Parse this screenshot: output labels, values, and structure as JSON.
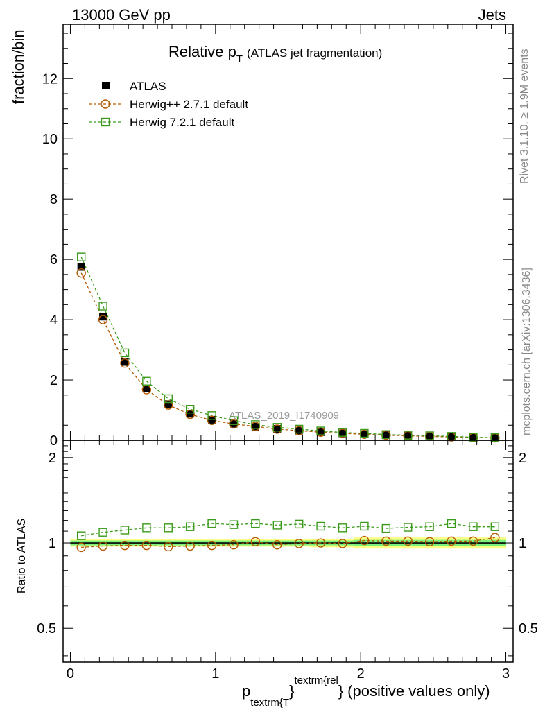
{
  "header": {
    "left": "13000 GeV pp",
    "right": "Jets"
  },
  "side": {
    "rivet": "Rivet 3.1.10, ≥ 1.9M events",
    "mcplots": "mcplots.cern.ch [arXiv:1306.3436]"
  },
  "colors": {
    "atlas": "#000000",
    "herwigpp": "#b35900",
    "herwig7": "#3a9a1a",
    "band_inner": "#7cf07c",
    "band_outer": "#ffff80"
  },
  "chart_data": [
    {
      "type": "scatter",
      "title_main": "Relative p",
      "title_sub": "T",
      "title_rest": "(ATLAS jet fragmentation)",
      "ylabel": "fraction/bin",
      "watermark": "ATLAS_2019_I1740909",
      "xlim": [
        -0.05,
        3.05
      ],
      "ylim": [
        0,
        13.8
      ],
      "yticks": [
        0,
        2,
        4,
        6,
        8,
        10,
        12
      ],
      "x": [
        0.075,
        0.225,
        0.375,
        0.525,
        0.675,
        0.825,
        0.975,
        1.125,
        1.275,
        1.425,
        1.575,
        1.725,
        1.875,
        2.025,
        2.175,
        2.325,
        2.475,
        2.625,
        2.775,
        2.925
      ],
      "series": [
        {
          "name": "ATLAS",
          "style": "data",
          "values": [
            5.75,
            4.1,
            2.6,
            1.72,
            1.2,
            0.88,
            0.68,
            0.55,
            0.45,
            0.38,
            0.32,
            0.27,
            0.23,
            0.2,
            0.17,
            0.15,
            0.13,
            0.11,
            0.09,
            0.08
          ]
        },
        {
          "name": "Herwig++ 2.7.1 default",
          "style": "circle",
          "values": [
            5.55,
            4.0,
            2.56,
            1.68,
            1.17,
            0.86,
            0.66,
            0.54,
            0.46,
            0.37,
            0.32,
            0.27,
            0.23,
            0.2,
            0.17,
            0.15,
            0.13,
            0.11,
            0.09,
            0.08
          ]
        },
        {
          "name": "Herwig 7.2.1 default",
          "style": "square",
          "values": [
            6.08,
            4.45,
            2.9,
            1.96,
            1.38,
            1.03,
            0.82,
            0.65,
            0.52,
            0.43,
            0.37,
            0.31,
            0.26,
            0.23,
            0.19,
            0.17,
            0.15,
            0.13,
            0.1,
            0.09
          ]
        }
      ]
    },
    {
      "type": "scatter",
      "ylabel": "Ratio to ATLAS",
      "xlabel_main": "p",
      "xlabel_sub1": "textrm{T",
      "xlabel_brace1": "}",
      "xlabel_sup": "textrm{rel",
      "xlabel_brace2": "}",
      "xlabel_rest": "(positive values only)",
      "xlim": [
        -0.05,
        3.05
      ],
      "ylim": [
        0.38,
        2.3
      ],
      "log_y": true,
      "yticks": [
        0.5,
        1,
        2
      ],
      "ytick_labels": [
        "0.5",
        "1",
        "2"
      ],
      "xticks": [
        0,
        1,
        2,
        3
      ],
      "xtick_labels": [
        "0",
        "1",
        "2",
        "3"
      ],
      "x": [
        0.075,
        0.225,
        0.375,
        0.525,
        0.675,
        0.825,
        0.975,
        1.125,
        1.275,
        1.425,
        1.575,
        1.725,
        1.875,
        2.025,
        2.175,
        2.325,
        2.475,
        2.625,
        2.775,
        2.925
      ],
      "band_inner": [
        0.02,
        0.02,
        0.02,
        0.02,
        0.02,
        0.02,
        0.02,
        0.02,
        0.02,
        0.02,
        0.02,
        0.02,
        0.02,
        0.025,
        0.025,
        0.025,
        0.025,
        0.025,
        0.025,
        0.025
      ],
      "band_outer": [
        0.03,
        0.03,
        0.03,
        0.03,
        0.03,
        0.03,
        0.03,
        0.03,
        0.03,
        0.03,
        0.03,
        0.035,
        0.035,
        0.045,
        0.045,
        0.045,
        0.045,
        0.045,
        0.045,
        0.045
      ],
      "series": [
        {
          "name": "Herwig++ 2.7.1 default",
          "style": "circle",
          "values": [
            0.965,
            0.975,
            0.98,
            0.98,
            0.97,
            0.975,
            0.98,
            0.985,
            1.01,
            0.985,
            0.995,
            1.0,
            0.995,
            1.02,
            1.015,
            1.015,
            1.01,
            1.015,
            1.015,
            1.045
          ]
        },
        {
          "name": "Herwig 7.2.1 default",
          "style": "square",
          "values": [
            1.06,
            1.09,
            1.11,
            1.13,
            1.13,
            1.14,
            1.17,
            1.16,
            1.17,
            1.155,
            1.165,
            1.145,
            1.13,
            1.145,
            1.125,
            1.135,
            1.14,
            1.17,
            1.14,
            1.14
          ]
        }
      ]
    }
  ]
}
